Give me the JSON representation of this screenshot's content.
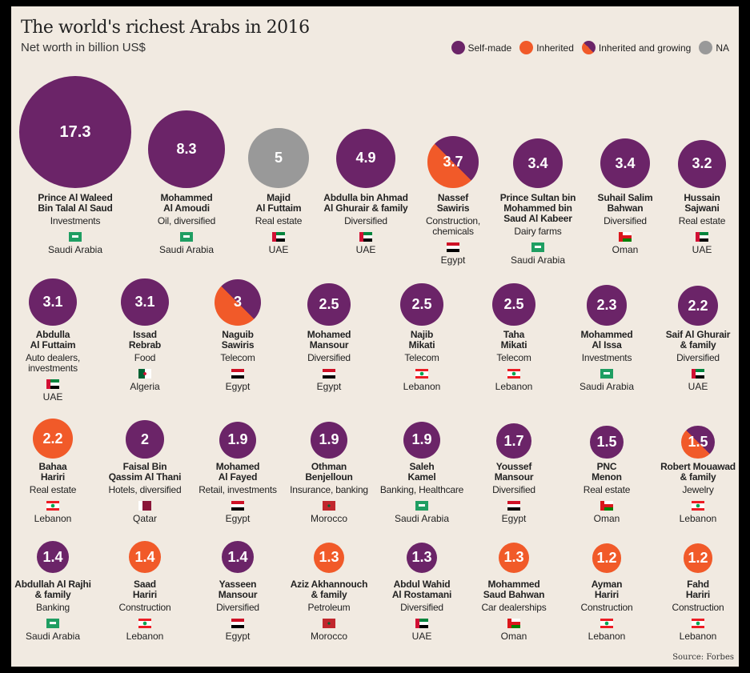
{
  "title": "The world's richest Arabs in 2016",
  "subtitle": "Net worth in billion US$",
  "source": "Source: Forbes",
  "colors": {
    "self_made": "#6b2468",
    "inherited": "#f15a29",
    "na": "#999999"
  },
  "legend": [
    {
      "key": "self",
      "label": "Self-made"
    },
    {
      "key": "inherited",
      "label": "Inherited"
    },
    {
      "key": "growing",
      "label": "Inherited and growing"
    },
    {
      "key": "na",
      "label": "NA"
    }
  ],
  "chart_data": {
    "type": "bubble",
    "title": "The world's richest Arabs in 2016",
    "unit": "billion US$",
    "rows": [
      [
        {
          "name": [
            "Prince Al Waleed",
            "Bin Talal Al Saud"
          ],
          "industry": [
            "Investments"
          ],
          "country": "Saudi Arabia",
          "value": 17.3,
          "value_label": "17.3",
          "type": "self"
        },
        {
          "name": [
            "Mohammed",
            "Al Amoudi"
          ],
          "industry": [
            "Oil, diversified"
          ],
          "country": "Saudi Arabia",
          "value": 8.3,
          "value_label": "8.3",
          "type": "self"
        },
        {
          "name": [
            "Majid",
            "Al Futtaim"
          ],
          "industry": [
            "Real estate"
          ],
          "country": "UAE",
          "value": 5,
          "value_label": "5",
          "type": "na"
        },
        {
          "name": [
            "Abdulla bin Ahmad",
            "Al Ghurair & family"
          ],
          "industry": [
            "Diversified"
          ],
          "country": "UAE",
          "value": 4.9,
          "value_label": "4.9",
          "type": "self"
        },
        {
          "name": [
            "Nassef",
            "Sawiris"
          ],
          "industry": [
            "Construction,",
            "chemicals"
          ],
          "country": "Egypt",
          "value": 3.7,
          "value_label": "3.7",
          "type": "growing"
        },
        {
          "name": [
            "Prince Sultan bin",
            "Mohammed bin",
            "Saud Al Kabeer"
          ],
          "industry": [
            "Dairy farms"
          ],
          "country": "Saudi Arabia",
          "value": 3.4,
          "value_label": "3.4",
          "type": "self"
        },
        {
          "name": [
            "Suhail Salim",
            "Bahwan"
          ],
          "industry": [
            "Diversified"
          ],
          "country": "Oman",
          "value": 3.4,
          "value_label": "3.4",
          "type": "self"
        },
        {
          "name": [
            "Hussain",
            "Sajwani"
          ],
          "industry": [
            "Real estate"
          ],
          "country": "UAE",
          "value": 3.2,
          "value_label": "3.2",
          "type": "self"
        }
      ],
      [
        {
          "name": [
            "Abdulla",
            "Al Futtaim"
          ],
          "industry": [
            "Auto dealers,",
            "investments"
          ],
          "country": "UAE",
          "value": 3.1,
          "value_label": "3.1",
          "type": "self"
        },
        {
          "name": [
            "Issad",
            "Rebrab"
          ],
          "industry": [
            "Food"
          ],
          "country": "Algeria",
          "value": 3.1,
          "value_label": "3.1",
          "type": "self"
        },
        {
          "name": [
            "Naguib",
            "Sawiris"
          ],
          "industry": [
            "Telecom"
          ],
          "country": "Egypt",
          "value": 3,
          "value_label": "3",
          "type": "growing"
        },
        {
          "name": [
            "Mohamed",
            "Mansour"
          ],
          "industry": [
            "Diversified"
          ],
          "country": "Egypt",
          "value": 2.5,
          "value_label": "2.5",
          "type": "self"
        },
        {
          "name": [
            "Najib",
            "Mikati"
          ],
          "industry": [
            "Telecom"
          ],
          "country": "Lebanon",
          "value": 2.5,
          "value_label": "2.5",
          "type": "self"
        },
        {
          "name": [
            "Taha",
            "Mikati"
          ],
          "industry": [
            "Telecom"
          ],
          "country": "Lebanon",
          "value": 2.5,
          "value_label": "2.5",
          "type": "self"
        },
        {
          "name": [
            "Mohammed",
            "Al Issa"
          ],
          "industry": [
            "Investments"
          ],
          "country": "Saudi Arabia",
          "value": 2.3,
          "value_label": "2.3",
          "type": "self"
        },
        {
          "name": [
            "Saif Al Ghurair",
            "& family"
          ],
          "industry": [
            "Diversified"
          ],
          "country": "UAE",
          "value": 2.2,
          "value_label": "2.2",
          "type": "self"
        }
      ],
      [
        {
          "name": [
            "Bahaa",
            "Hariri"
          ],
          "industry": [
            "Real estate"
          ],
          "country": "Lebanon",
          "value": 2.2,
          "value_label": "2.2",
          "type": "inherited"
        },
        {
          "name": [
            "Faisal Bin",
            "Qassim Al Thani"
          ],
          "industry": [
            "Hotels, diversified"
          ],
          "country": "Qatar",
          "value": 2,
          "value_label": "2",
          "type": "self"
        },
        {
          "name": [
            "Mohamed",
            "Al Fayed"
          ],
          "industry": [
            "Retail, investments"
          ],
          "country": "Egypt",
          "value": 1.9,
          "value_label": "1.9",
          "type": "self"
        },
        {
          "name": [
            "Othman",
            "Benjelloun"
          ],
          "industry": [
            "Insurance, banking"
          ],
          "country": "Morocco",
          "value": 1.9,
          "value_label": "1.9",
          "type": "self"
        },
        {
          "name": [
            "Saleh",
            "Kamel"
          ],
          "industry": [
            "Banking, Healthcare"
          ],
          "country": "Saudi Arabia",
          "value": 1.9,
          "value_label": "1.9",
          "type": "self"
        },
        {
          "name": [
            "Youssef",
            "Mansour"
          ],
          "industry": [
            "Diversified"
          ],
          "country": "Egypt",
          "value": 1.7,
          "value_label": "1.7",
          "type": "self"
        },
        {
          "name": [
            "PNC",
            "Menon"
          ],
          "industry": [
            "Real estate"
          ],
          "country": "Oman",
          "value": 1.5,
          "value_label": "1.5",
          "type": "self"
        },
        {
          "name": [
            "Robert Mouawad",
            "& family"
          ],
          "industry": [
            "Jewelry"
          ],
          "country": "Lebanon",
          "value": 1.5,
          "value_label": "1.5",
          "type": "growing"
        }
      ],
      [
        {
          "name": [
            "Abdullah Al Rajhi",
            "& family"
          ],
          "industry": [
            "Banking"
          ],
          "country": "Saudi Arabia",
          "value": 1.4,
          "value_label": "1.4",
          "type": "self"
        },
        {
          "name": [
            "Saad",
            "Hariri"
          ],
          "industry": [
            "Construction"
          ],
          "country": "Lebanon",
          "value": 1.4,
          "value_label": "1.4",
          "type": "inherited"
        },
        {
          "name": [
            "Yasseen",
            "Mansour"
          ],
          "industry": [
            "Diversified"
          ],
          "country": "Egypt",
          "value": 1.4,
          "value_label": "1.4",
          "type": "self"
        },
        {
          "name": [
            "Aziz Akhannouch",
            "& family"
          ],
          "industry": [
            "Petroleum"
          ],
          "country": "Morocco",
          "value": 1.3,
          "value_label": "1.3",
          "type": "inherited"
        },
        {
          "name": [
            "Abdul Wahid",
            "Al Rostamani"
          ],
          "industry": [
            "Diversified"
          ],
          "country": "UAE",
          "value": 1.3,
          "value_label": "1.3",
          "type": "self"
        },
        {
          "name": [
            "Mohammed",
            "Saud Bahwan"
          ],
          "industry": [
            "Car dealerships"
          ],
          "country": "Oman",
          "value": 1.3,
          "value_label": "1.3",
          "type": "inherited"
        },
        {
          "name": [
            "Ayman",
            "Hariri"
          ],
          "industry": [
            "Construction"
          ],
          "country": "Lebanon",
          "value": 1.2,
          "value_label": "1.2",
          "type": "inherited"
        },
        {
          "name": [
            "Fahd",
            "Hariri"
          ],
          "industry": [
            "Construction"
          ],
          "country": "Lebanon",
          "value": 1.2,
          "value_label": "1.2",
          "type": "inherited"
        }
      ]
    ]
  }
}
